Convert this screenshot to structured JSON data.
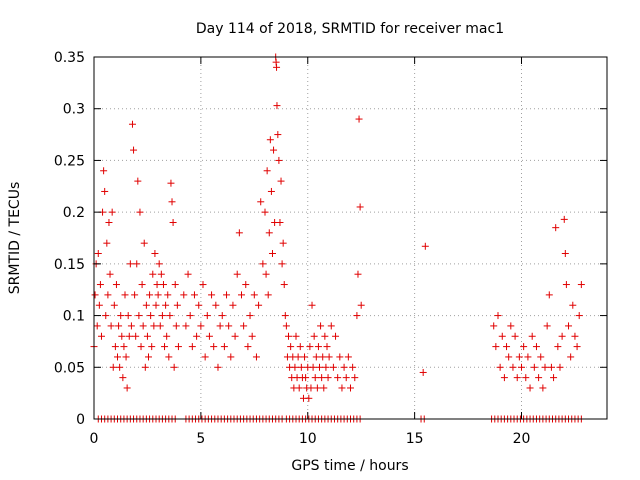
{
  "chart_data": {
    "type": "scatter",
    "title": "Day 114 of 2018, SRMTID for receiver mac1",
    "xlabel": "GPS time / hours",
    "ylabel": "SRMTID / TECUs",
    "xlim": [
      0,
      24
    ],
    "ylim": [
      0,
      0.35
    ],
    "xticks": [
      0,
      5,
      10,
      15,
      20
    ],
    "xtick_labels": [
      "0",
      "5",
      "10",
      "15",
      "20"
    ],
    "yticks": [
      0,
      0.05,
      0.1,
      0.15,
      0.2,
      0.25,
      0.3,
      0.35
    ],
    "ytick_labels": [
      "0",
      "0.05",
      "0.1",
      "0.15",
      "0.2",
      "0.25",
      "0.3",
      "0.35"
    ],
    "grid": true,
    "marker": "+",
    "color": "#e00000",
    "series": [
      {
        "name": "SRMTID",
        "points": [
          [
            0.0,
            0.07
          ],
          [
            0.05,
            0.12
          ],
          [
            0.1,
            0.15
          ],
          [
            0.15,
            0.09
          ],
          [
            0.2,
            0.16
          ],
          [
            0.25,
            0.11
          ],
          [
            0.3,
            0.13
          ],
          [
            0.35,
            0.08
          ],
          [
            0.4,
            0.2
          ],
          [
            0.45,
            0.24
          ],
          [
            0.5,
            0.22
          ],
          [
            0.55,
            0.1
          ],
          [
            0.6,
            0.17
          ],
          [
            0.65,
            0.12
          ],
          [
            0.7,
            0.19
          ],
          [
            0.75,
            0.14
          ],
          [
            0.8,
            0.09
          ],
          [
            0.85,
            0.2
          ],
          [
            0.9,
            0.05
          ],
          [
            0.95,
            0.11
          ],
          [
            1.0,
            0.07
          ],
          [
            1.05,
            0.13
          ],
          [
            1.1,
            0.06
          ],
          [
            1.15,
            0.09
          ],
          [
            1.2,
            0.05
          ],
          [
            1.25,
            0.1
          ],
          [
            1.3,
            0.08
          ],
          [
            1.35,
            0.04
          ],
          [
            1.4,
            0.07
          ],
          [
            1.45,
            0.12
          ],
          [
            1.5,
            0.06
          ],
          [
            1.55,
            0.03
          ],
          [
            1.6,
            0.1
          ],
          [
            1.65,
            0.08
          ],
          [
            1.7,
            0.15
          ],
          [
            1.75,
            0.09
          ],
          [
            1.8,
            0.285
          ],
          [
            1.85,
            0.26
          ],
          [
            1.9,
            0.12
          ],
          [
            1.95,
            0.08
          ],
          [
            2.0,
            0.15
          ],
          [
            2.05,
            0.23
          ],
          [
            2.1,
            0.1
          ],
          [
            2.15,
            0.2
          ],
          [
            2.2,
            0.07
          ],
          [
            2.25,
            0.13
          ],
          [
            2.3,
            0.09
          ],
          [
            2.35,
            0.17
          ],
          [
            2.4,
            0.05
          ],
          [
            2.45,
            0.11
          ],
          [
            2.5,
            0.08
          ],
          [
            2.55,
            0.06
          ],
          [
            2.6,
            0.12
          ],
          [
            2.65,
            0.1
          ],
          [
            2.7,
            0.07
          ],
          [
            2.75,
            0.14
          ],
          [
            2.8,
            0.09
          ],
          [
            2.85,
            0.16
          ],
          [
            2.9,
            0.11
          ],
          [
            2.95,
            0.13
          ],
          [
            3.0,
            0.12
          ],
          [
            3.05,
            0.15
          ],
          [
            3.1,
            0.09
          ],
          [
            3.15,
            0.14
          ],
          [
            3.2,
            0.1
          ],
          [
            3.25,
            0.13
          ],
          [
            3.3,
            0.07
          ],
          [
            3.35,
            0.11
          ],
          [
            3.4,
            0.08
          ],
          [
            3.45,
            0.12
          ],
          [
            3.5,
            0.06
          ],
          [
            3.55,
            0.1
          ],
          [
            3.6,
            0.228
          ],
          [
            3.65,
            0.21
          ],
          [
            3.7,
            0.19
          ],
          [
            3.75,
            0.05
          ],
          [
            3.8,
            0.13
          ],
          [
            3.85,
            0.09
          ],
          [
            3.9,
            0.11
          ],
          [
            3.95,
            0.07
          ],
          [
            4.2,
            0.12
          ],
          [
            4.3,
            0.09
          ],
          [
            4.4,
            0.14
          ],
          [
            4.5,
            0.1
          ],
          [
            4.6,
            0.07
          ],
          [
            4.7,
            0.12
          ],
          [
            4.8,
            0.08
          ],
          [
            4.9,
            0.11
          ],
          [
            5.0,
            0.09
          ],
          [
            5.1,
            0.13
          ],
          [
            5.2,
            0.06
          ],
          [
            5.3,
            0.1
          ],
          [
            5.4,
            0.08
          ],
          [
            5.5,
            0.12
          ],
          [
            5.6,
            0.07
          ],
          [
            5.7,
            0.11
          ],
          [
            5.8,
            0.05
          ],
          [
            5.9,
            0.09
          ],
          [
            6.0,
            0.1
          ],
          [
            6.1,
            0.07
          ],
          [
            6.2,
            0.12
          ],
          [
            6.3,
            0.09
          ],
          [
            6.4,
            0.06
          ],
          [
            6.5,
            0.11
          ],
          [
            6.6,
            0.08
          ],
          [
            6.7,
            0.14
          ],
          [
            6.8,
            0.18
          ],
          [
            6.9,
            0.12
          ],
          [
            7.0,
            0.09
          ],
          [
            7.1,
            0.13
          ],
          [
            7.2,
            0.07
          ],
          [
            7.3,
            0.1
          ],
          [
            7.4,
            0.08
          ],
          [
            7.5,
            0.12
          ],
          [
            7.6,
            0.06
          ],
          [
            7.7,
            0.11
          ],
          [
            7.8,
            0.21
          ],
          [
            7.9,
            0.15
          ],
          [
            8.0,
            0.2
          ],
          [
            8.05,
            0.14
          ],
          [
            8.1,
            0.24
          ],
          [
            8.15,
            0.12
          ],
          [
            8.2,
            0.18
          ],
          [
            8.25,
            0.27
          ],
          [
            8.3,
            0.22
          ],
          [
            8.35,
            0.16
          ],
          [
            8.4,
            0.26
          ],
          [
            8.45,
            0.19
          ],
          [
            8.5,
            0.35
          ],
          [
            8.52,
            0.345
          ],
          [
            8.54,
            0.34
          ],
          [
            8.56,
            0.303
          ],
          [
            8.6,
            0.275
          ],
          [
            8.65,
            0.25
          ],
          [
            8.7,
            0.19
          ],
          [
            8.75,
            0.23
          ],
          [
            8.8,
            0.15
          ],
          [
            8.85,
            0.17
          ],
          [
            8.9,
            0.13
          ],
          [
            8.95,
            0.1
          ],
          [
            9.0,
            0.09
          ],
          [
            9.05,
            0.06
          ],
          [
            9.1,
            0.08
          ],
          [
            9.15,
            0.05
          ],
          [
            9.2,
            0.07
          ],
          [
            9.25,
            0.04
          ],
          [
            9.3,
            0.06
          ],
          [
            9.35,
            0.03
          ],
          [
            9.4,
            0.05
          ],
          [
            9.45,
            0.08
          ],
          [
            9.5,
            0.04
          ],
          [
            9.55,
            0.06
          ],
          [
            9.6,
            0.03
          ],
          [
            9.65,
            0.07
          ],
          [
            9.7,
            0.05
          ],
          [
            9.75,
            0.04
          ],
          [
            9.8,
            0.02
          ],
          [
            9.85,
            0.06
          ],
          [
            9.9,
            0.04
          ],
          [
            9.95,
            0.03
          ],
          [
            10.0,
            0.05
          ],
          [
            10.05,
            0.02
          ],
          [
            10.1,
            0.07
          ],
          [
            10.15,
            0.03
          ],
          [
            10.2,
            0.11
          ],
          [
            10.25,
            0.05
          ],
          [
            10.3,
            0.08
          ],
          [
            10.35,
            0.04
          ],
          [
            10.4,
            0.06
          ],
          [
            10.45,
            0.03
          ],
          [
            10.5,
            0.07
          ],
          [
            10.55,
            0.05
          ],
          [
            10.6,
            0.09
          ],
          [
            10.65,
            0.04
          ],
          [
            10.7,
            0.06
          ],
          [
            10.75,
            0.03
          ],
          [
            10.8,
            0.08
          ],
          [
            10.85,
            0.05
          ],
          [
            10.9,
            0.07
          ],
          [
            10.95,
            0.04
          ],
          [
            11.0,
            0.06
          ],
          [
            11.1,
            0.09
          ],
          [
            11.2,
            0.05
          ],
          [
            11.3,
            0.08
          ],
          [
            11.4,
            0.04
          ],
          [
            11.5,
            0.06
          ],
          [
            11.6,
            0.03
          ],
          [
            11.7,
            0.05
          ],
          [
            11.8,
            0.04
          ],
          [
            11.9,
            0.06
          ],
          [
            12.0,
            0.03
          ],
          [
            12.1,
            0.05
          ],
          [
            12.2,
            0.04
          ],
          [
            12.3,
            0.1
          ],
          [
            12.35,
            0.14
          ],
          [
            12.4,
            0.29
          ],
          [
            12.45,
            0.205
          ],
          [
            12.5,
            0.11
          ],
          [
            15.4,
            0.045
          ],
          [
            15.5,
            0.167
          ],
          [
            18.7,
            0.09
          ],
          [
            18.8,
            0.07
          ],
          [
            18.9,
            0.1
          ],
          [
            19.0,
            0.05
          ],
          [
            19.1,
            0.08
          ],
          [
            19.2,
            0.04
          ],
          [
            19.3,
            0.07
          ],
          [
            19.4,
            0.06
          ],
          [
            19.5,
            0.09
          ],
          [
            19.6,
            0.05
          ],
          [
            19.7,
            0.08
          ],
          [
            19.8,
            0.04
          ],
          [
            19.9,
            0.06
          ],
          [
            20.0,
            0.05
          ],
          [
            20.1,
            0.07
          ],
          [
            20.2,
            0.04
          ],
          [
            20.3,
            0.06
          ],
          [
            20.4,
            0.03
          ],
          [
            20.5,
            0.08
          ],
          [
            20.6,
            0.05
          ],
          [
            20.7,
            0.07
          ],
          [
            20.8,
            0.04
          ],
          [
            20.9,
            0.06
          ],
          [
            21.0,
            0.03
          ],
          [
            21.1,
            0.05
          ],
          [
            21.2,
            0.09
          ],
          [
            21.3,
            0.12
          ],
          [
            21.4,
            0.05
          ],
          [
            21.5,
            0.04
          ],
          [
            21.6,
            0.185
          ],
          [
            21.7,
            0.07
          ],
          [
            21.8,
            0.05
          ],
          [
            21.9,
            0.08
          ],
          [
            22.0,
            0.193
          ],
          [
            22.05,
            0.16
          ],
          [
            22.1,
            0.13
          ],
          [
            22.2,
            0.09
          ],
          [
            22.3,
            0.06
          ],
          [
            22.4,
            0.11
          ],
          [
            22.5,
            0.08
          ],
          [
            22.6,
            0.07
          ],
          [
            22.7,
            0.1
          ],
          [
            22.8,
            0.13
          ]
        ],
        "zero_ranges": [
          [
            0.2,
            3.9
          ],
          [
            4.3,
            8.8
          ],
          [
            9.0,
            12.5
          ],
          [
            15.3,
            15.5
          ],
          [
            18.6,
            22.8
          ]
        ]
      }
    ]
  }
}
